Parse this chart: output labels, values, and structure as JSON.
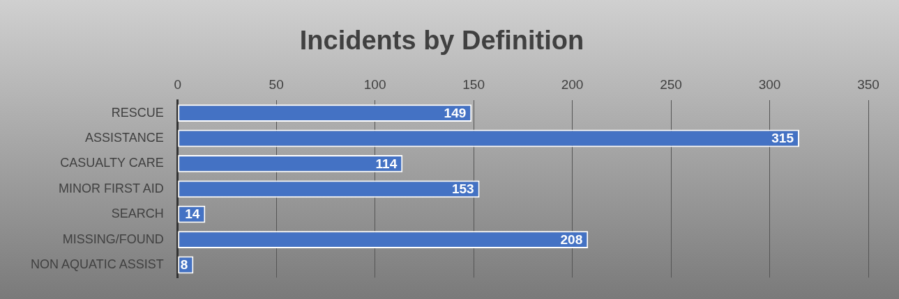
{
  "chart_data": {
    "type": "bar",
    "title": "Incidents by Definition",
    "orientation": "horizontal",
    "categories": [
      "RESCUE",
      "ASSISTANCE",
      "CASUALTY CARE",
      "MINOR FIRST AID",
      "SEARCH",
      "MISSING/FOUND",
      "NON AQUATIC ASSIST"
    ],
    "values": [
      149,
      315,
      114,
      153,
      14,
      208,
      8
    ],
    "color": "#4472c4",
    "xlim": [
      0,
      350
    ],
    "xticks": [
      0,
      50,
      100,
      150,
      200,
      250,
      300,
      350
    ],
    "grid": "x",
    "data_labels": true
  }
}
